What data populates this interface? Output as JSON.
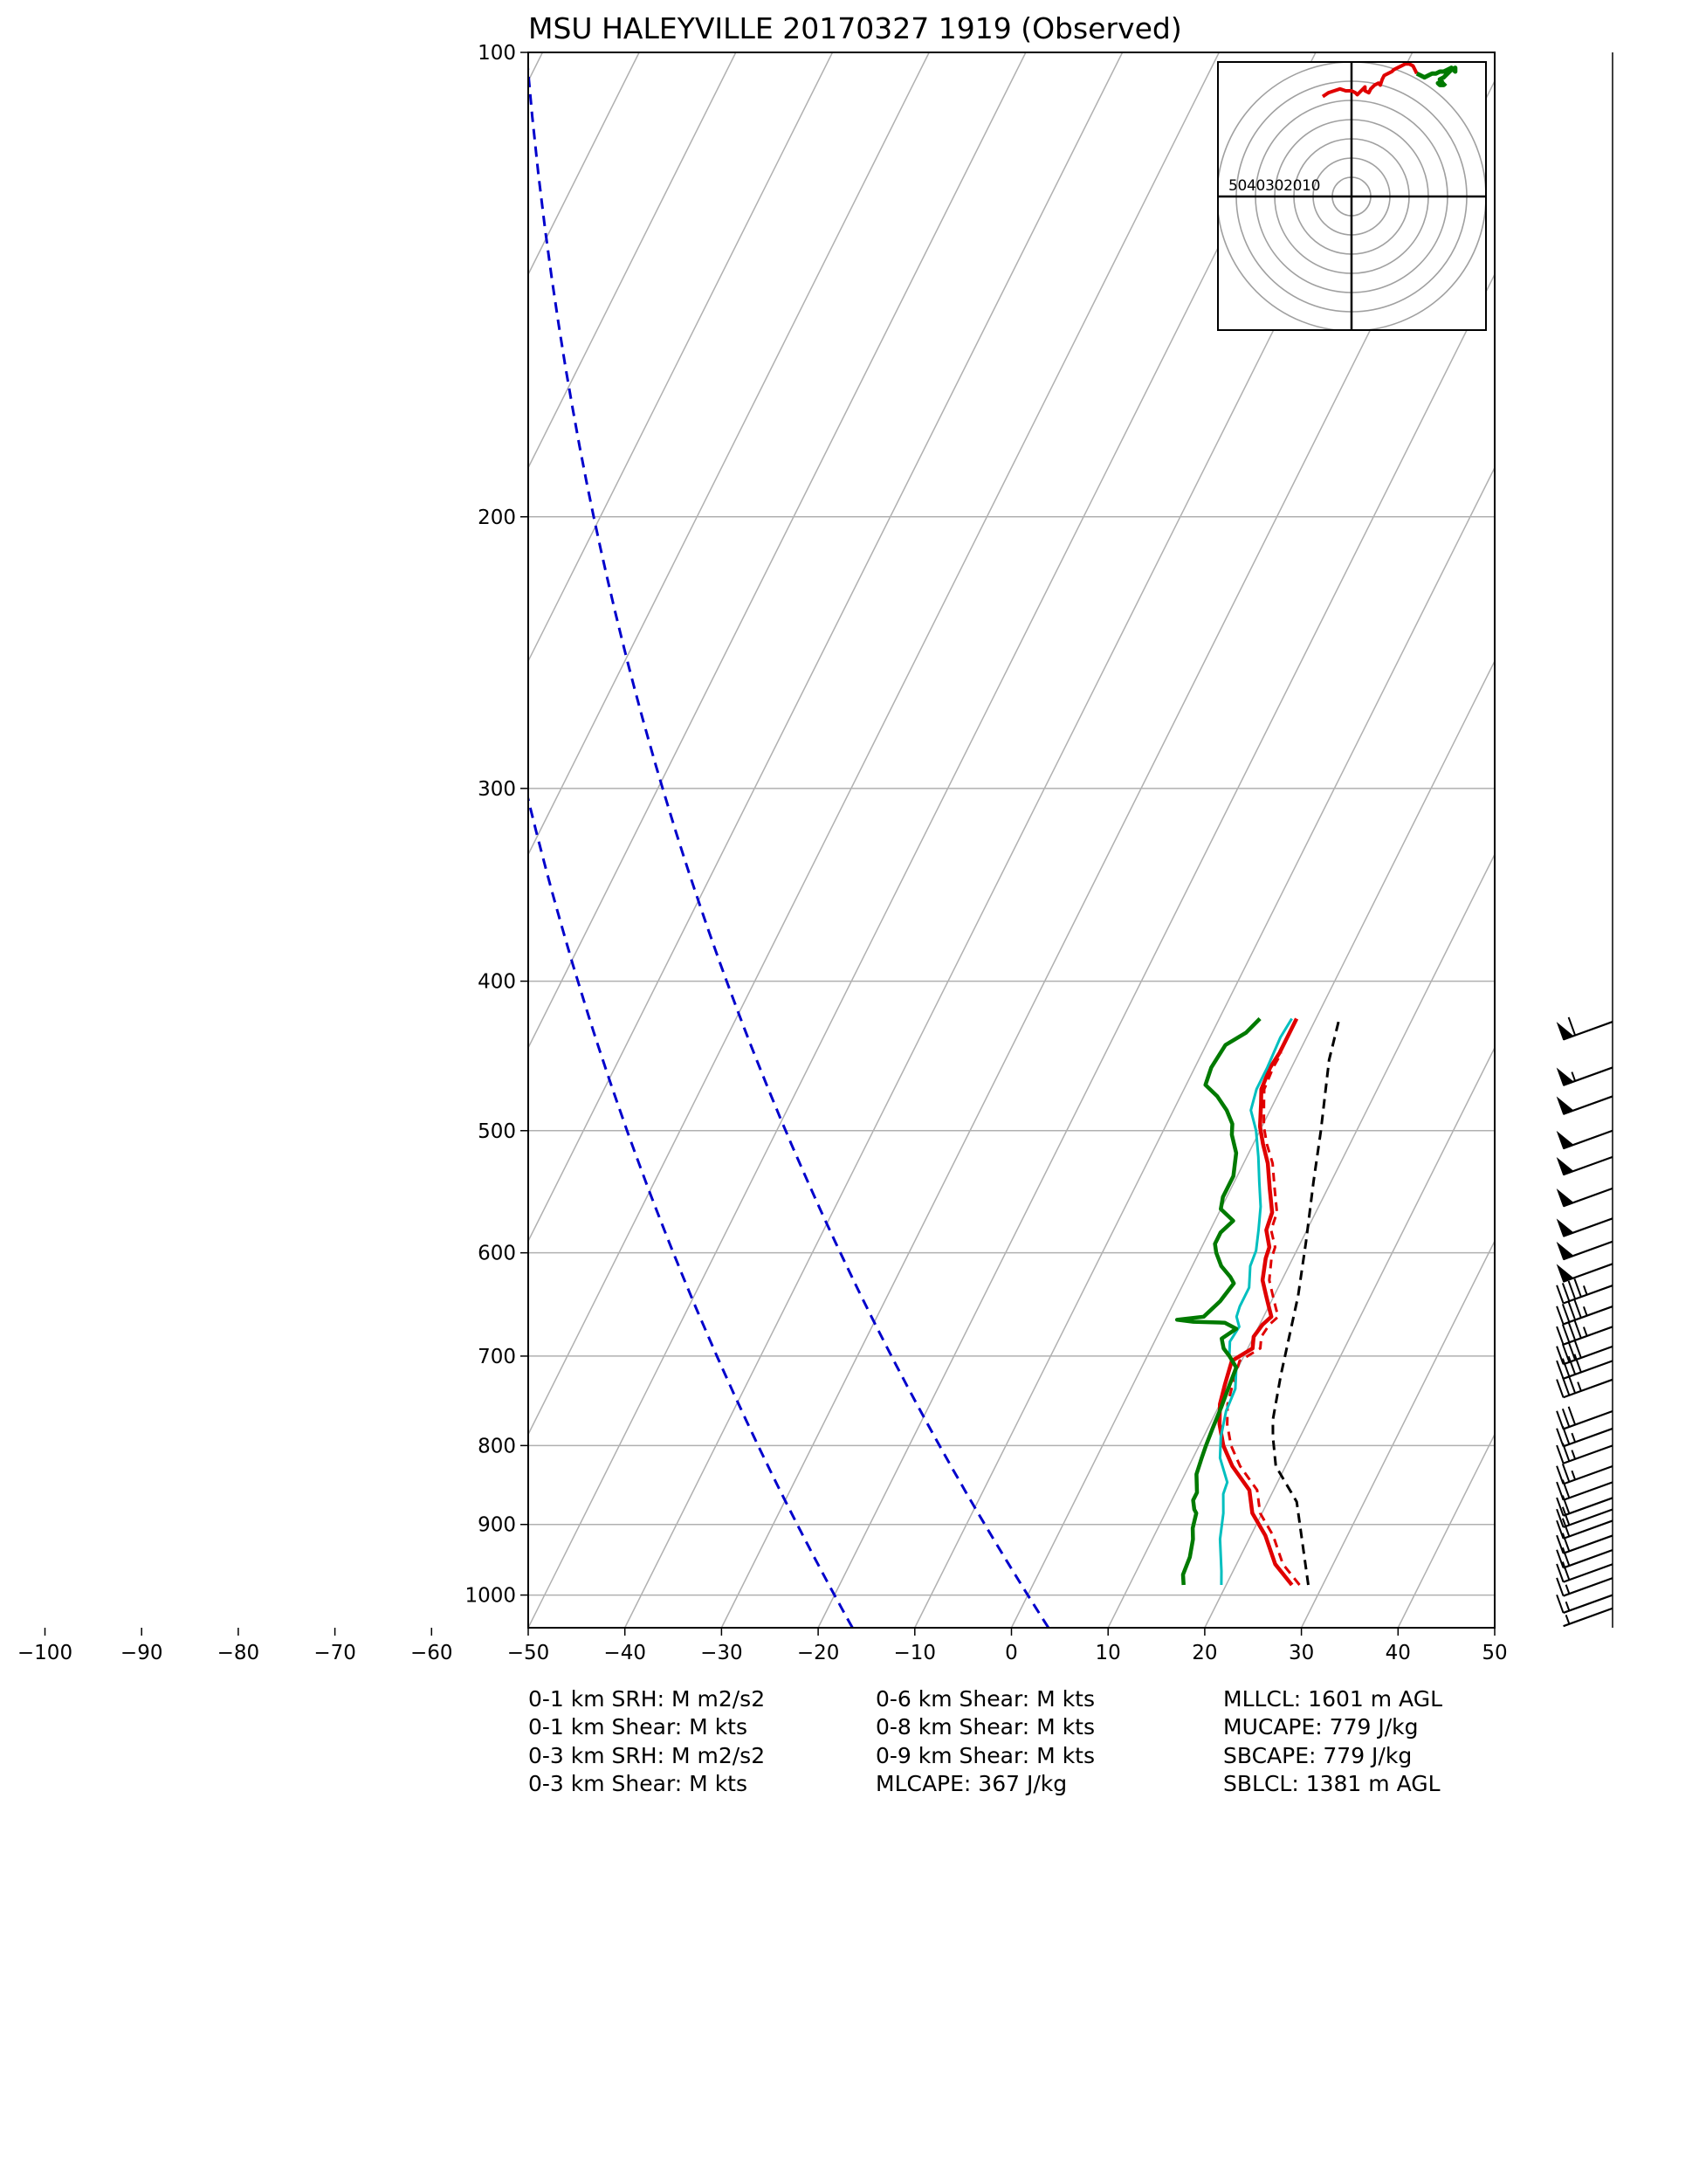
{
  "chart_data": {
    "type": "line",
    "title": "MSU HALEYVILLE 20170327 1919   (Observed)",
    "xlim": [
      -50,
      50
    ],
    "x_tick_labels": [
      "−100",
      "−90",
      "−80",
      "−70",
      "−60",
      "−50",
      "−40",
      "−30",
      "−20",
      "−10",
      "0",
      "10",
      "20",
      "30",
      "40",
      "50"
    ],
    "x_ticks": [
      -100,
      -90,
      -80,
      -70,
      -60,
      -50,
      -40,
      -30,
      -20,
      -10,
      0,
      10,
      20,
      30,
      40,
      50
    ],
    "y_scale": "log",
    "ylim": [
      1050,
      100
    ],
    "y_ticks": [
      1000,
      900,
      800,
      700,
      600,
      500,
      400,
      300,
      200,
      100
    ],
    "y_tick_labels": [
      "1000",
      "900",
      "800",
      "700",
      "600",
      "500",
      "400",
      "300",
      "200",
      "100"
    ],
    "grid": true,
    "skew_isotherms": true,
    "series": [
      {
        "key": "temperature",
        "color": "#e00000",
        "width": 4.5,
        "dash": "",
        "points": [
          [
            26.8,
            985
          ],
          [
            24,
            955
          ],
          [
            21.5,
            915
          ],
          [
            19,
            885
          ],
          [
            17.5,
            855
          ],
          [
            14.5,
            825
          ],
          [
            12.5,
            800
          ],
          [
            11,
            775
          ],
          [
            10,
            752
          ],
          [
            9.5,
            730
          ],
          [
            9,
            705
          ],
          [
            10.5,
            692
          ],
          [
            10,
            680
          ],
          [
            10.3,
            668
          ],
          [
            10.8,
            660
          ],
          [
            10,
            650
          ],
          [
            9.2,
            640
          ],
          [
            8,
            625
          ],
          [
            7.2,
            605
          ],
          [
            7,
            595
          ],
          [
            5.8,
            580
          ],
          [
            5.5,
            565
          ],
          [
            4,
            545
          ],
          [
            2.5,
            525
          ],
          [
            1,
            510
          ],
          [
            -0.2,
            497
          ],
          [
            -1.3,
            480
          ],
          [
            -2,
            470
          ],
          [
            -2.2,
            455
          ],
          [
            -2,
            445
          ],
          [
            -2,
            430
          ],
          [
            -2,
            423
          ]
        ]
      },
      {
        "key": "virtual-temperature",
        "color": "#e00000",
        "width": 3,
        "dash": "10,7",
        "points": [
          [
            27.6,
            985
          ],
          [
            24.8,
            955
          ],
          [
            22.3,
            915
          ],
          [
            19.8,
            885
          ],
          [
            18.3,
            855
          ],
          [
            15.3,
            825
          ],
          [
            13.3,
            800
          ],
          [
            11.8,
            775
          ],
          [
            10.8,
            752
          ],
          [
            10.3,
            730
          ],
          [
            9.8,
            705
          ],
          [
            11.3,
            692
          ],
          [
            10.8,
            680
          ],
          [
            11,
            668
          ],
          [
            11.5,
            660
          ],
          [
            10.7,
            650
          ],
          [
            9.9,
            640
          ],
          [
            8.7,
            625
          ],
          [
            7.8,
            605
          ],
          [
            7.6,
            595
          ],
          [
            6.3,
            580
          ],
          [
            6,
            565
          ],
          [
            4.5,
            545
          ],
          [
            3,
            525
          ],
          [
            1.4,
            510
          ],
          [
            0.2,
            497
          ],
          [
            -1,
            480
          ],
          [
            -1.7,
            470
          ],
          [
            -1.9,
            455
          ],
          [
            -1.8,
            445
          ]
        ]
      },
      {
        "key": "wet-bulb",
        "color": "#00bfbf",
        "width": 3,
        "dash": "",
        "points": [
          [
            19.5,
            985
          ],
          [
            18.8,
            965
          ],
          [
            17,
            920
          ],
          [
            16,
            885
          ],
          [
            15,
            860
          ],
          [
            14.8,
            845
          ],
          [
            12.8,
            815
          ],
          [
            11.8,
            790
          ],
          [
            11,
            760
          ],
          [
            10.8,
            735
          ],
          [
            9.8,
            712
          ],
          [
            8.5,
            700
          ],
          [
            7.8,
            685
          ],
          [
            8,
            670
          ],
          [
            7.2,
            660
          ],
          [
            7,
            650
          ],
          [
            7,
            632
          ],
          [
            6,
            612
          ],
          [
            5.8,
            598
          ],
          [
            5,
            580
          ],
          [
            4,
            560
          ],
          [
            2.6,
            540
          ],
          [
            1.2,
            520
          ],
          [
            -0.4,
            500
          ],
          [
            -2,
            485
          ],
          [
            -2.5,
            470
          ],
          [
            -2.5,
            455
          ],
          [
            -2.7,
            435
          ],
          [
            -2.5,
            423
          ]
        ]
      },
      {
        "key": "dewpoint",
        "color": "#007a00",
        "width": 4.5,
        "dash": "",
        "points": [
          [
            15.6,
            985
          ],
          [
            15,
            970
          ],
          [
            14.8,
            945
          ],
          [
            14.2,
            920
          ],
          [
            13.6,
            905
          ],
          [
            13.2,
            885
          ],
          [
            12.8,
            880
          ],
          [
            12.2,
            868
          ],
          [
            12.2,
            858
          ],
          [
            11.2,
            835
          ],
          [
            10.9,
            815
          ],
          [
            10.7,
            800
          ],
          [
            10.5,
            780
          ],
          [
            10.3,
            755
          ],
          [
            10,
            730
          ],
          [
            9.8,
            712
          ],
          [
            8.5,
            700
          ],
          [
            7.5,
            692
          ],
          [
            6.8,
            682
          ],
          [
            7.8,
            672
          ],
          [
            6.3,
            666
          ],
          [
            3,
            665
          ],
          [
            1.2,
            663
          ],
          [
            3.8,
            660
          ],
          [
            4.7,
            645
          ],
          [
            5.2,
            628
          ],
          [
            4.5,
            622
          ],
          [
            3,
            612
          ],
          [
            1.8,
            600
          ],
          [
            1.2,
            592
          ],
          [
            1.2,
            582
          ],
          [
            1.9,
            572
          ],
          [
            0,
            562
          ],
          [
            -0.4,
            552
          ],
          [
            -0.4,
            535
          ],
          [
            -1.3,
            517
          ],
          [
            -2.7,
            503
          ],
          [
            -3.2,
            495
          ],
          [
            -4.5,
            485
          ],
          [
            -6.2,
            475
          ],
          [
            -8,
            467
          ],
          [
            -8.3,
            455
          ],
          [
            -8,
            440
          ],
          [
            -6.5,
            432
          ],
          [
            -5.8,
            423
          ]
        ]
      },
      {
        "key": "parcel",
        "color": "#000000",
        "width": 3,
        "dash": "11,7",
        "points": [
          [
            28.5,
            985
          ],
          [
            23,
            870
          ],
          [
            19,
            825
          ],
          [
            17.2,
            790
          ],
          [
            16.3,
            770
          ],
          [
            14.8,
            720
          ],
          [
            12.5,
            640
          ],
          [
            10.5,
            590
          ],
          [
            8.2,
            540
          ],
          [
            6.3,
            500
          ],
          [
            3.5,
            450
          ],
          [
            2.5,
            425
          ]
        ]
      }
    ],
    "dry_adiabats_blue": [
      {
        "color": "#0000cc",
        "pressure": 1000,
        "temperature": -20
      },
      {
        "color": "#0000cc",
        "pressure": 1000,
        "temperature": 0
      }
    ],
    "wind_barbs": [
      {
        "pressure": 1020,
        "speed_kt": 5
      },
      {
        "pressure": 1000,
        "speed_kt": 15
      },
      {
        "pressure": 975,
        "speed_kt": 15
      },
      {
        "pressure": 955,
        "speed_kt": 20
      },
      {
        "pressure": 935,
        "speed_kt": 20
      },
      {
        "pressure": 915,
        "speed_kt": 20
      },
      {
        "pressure": 895,
        "speed_kt": 20
      },
      {
        "pressure": 880,
        "speed_kt": 20
      },
      {
        "pressure": 865,
        "speed_kt": 20
      },
      {
        "pressure": 845,
        "speed_kt": 20
      },
      {
        "pressure": 825,
        "speed_kt": 25
      },
      {
        "pressure": 800,
        "speed_kt": 25
      },
      {
        "pressure": 780,
        "speed_kt": 25
      },
      {
        "pressure": 760,
        "speed_kt": 30
      },
      {
        "pressure": 725,
        "speed_kt": 35
      },
      {
        "pressure": 705,
        "speed_kt": 40
      },
      {
        "pressure": 690,
        "speed_kt": 40
      },
      {
        "pressure": 670,
        "speed_kt": 45
      },
      {
        "pressure": 650,
        "speed_kt": 45
      },
      {
        "pressure": 630,
        "speed_kt": 45
      },
      {
        "pressure": 610,
        "speed_kt": 50
      },
      {
        "pressure": 590,
        "speed_kt": 50
      },
      {
        "pressure": 570,
        "speed_kt": 50
      },
      {
        "pressure": 545,
        "speed_kt": 50
      },
      {
        "pressure": 520,
        "speed_kt": 50
      },
      {
        "pressure": 500,
        "speed_kt": 50
      },
      {
        "pressure": 475,
        "speed_kt": 50
      },
      {
        "pressure": 455,
        "speed_kt": 55
      },
      {
        "pressure": 425,
        "speed_kt": 60
      }
    ],
    "hodograph": {
      "ring_labels": [
        "50",
        "40",
        "30",
        "20",
        "10"
      ],
      "ring_step_kt": 10,
      "max_ring_kt": 70,
      "red_uv": [
        [
          -15,
          52
        ],
        [
          -12,
          54
        ],
        [
          -9,
          55
        ],
        [
          -6,
          56
        ],
        [
          -3,
          55
        ],
        [
          0,
          55
        ],
        [
          2,
          54
        ],
        [
          3,
          53
        ],
        [
          5,
          55
        ],
        [
          7,
          57
        ],
        [
          7,
          55
        ],
        [
          9,
          54
        ],
        [
          10,
          56
        ],
        [
          12,
          58
        ],
        [
          14,
          59
        ],
        [
          15,
          58
        ],
        [
          16,
          61
        ],
        [
          17,
          63
        ],
        [
          19,
          64
        ],
        [
          21,
          65
        ],
        [
          22,
          66
        ],
        [
          24,
          67
        ],
        [
          26,
          68
        ],
        [
          28,
          69
        ],
        [
          30,
          69
        ],
        [
          32,
          68
        ],
        [
          33,
          66
        ],
        [
          34,
          64
        ]
      ],
      "green_uv": [
        [
          34,
          64
        ],
        [
          36,
          63
        ],
        [
          38,
          62
        ],
        [
          40,
          63
        ],
        [
          42,
          64
        ],
        [
          44,
          64
        ],
        [
          46,
          65
        ],
        [
          48,
          65
        ],
        [
          50,
          66
        ],
        [
          52,
          67
        ],
        [
          53,
          66
        ],
        [
          54,
          65
        ],
        [
          54,
          67
        ],
        [
          52,
          66
        ],
        [
          50,
          64
        ],
        [
          48,
          62
        ],
        [
          46,
          61
        ],
        [
          47,
          60
        ],
        [
          45,
          59
        ],
        [
          46,
          58
        ],
        [
          48,
          58
        ],
        [
          49,
          59
        ]
      ]
    }
  },
  "stats": {
    "col1": [
      "0-1 km SRH: M m2/s2",
      "0-1 km Shear: M kts",
      "0-3 km SRH: M m2/s2",
      "0-3 km Shear: M kts"
    ],
    "col2": [
      "0-6 km Shear: M kts",
      "0-8 km Shear: M kts",
      "0-9 km Shear: M kts",
      "MLCAPE: 367 J/kg"
    ],
    "col3": [
      "MLLCL: 1601 m AGL",
      "MUCAPE: 779 J/kg",
      "SBCAPE: 779 J/kg",
      "SBLCL: 1381 m AGL"
    ]
  }
}
